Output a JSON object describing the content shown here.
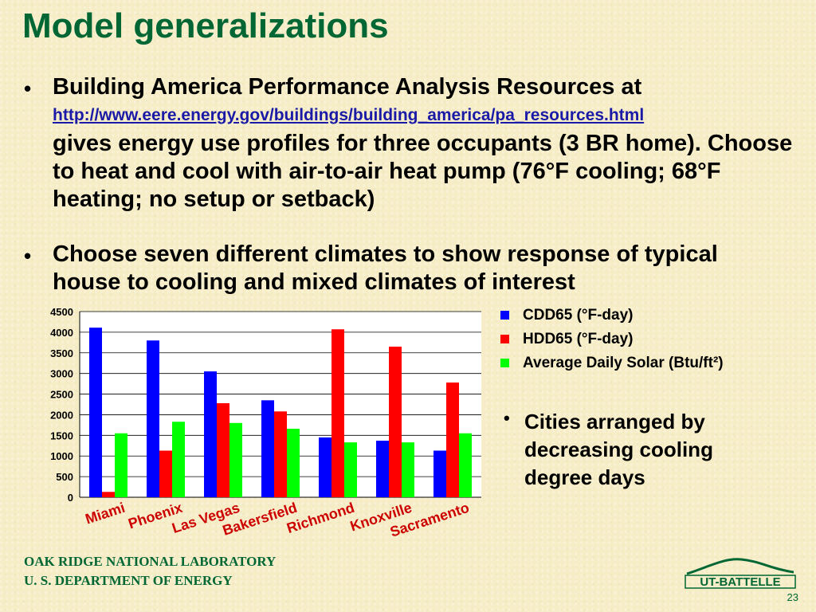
{
  "slide": {
    "title": "Model generalizations",
    "bullets": [
      {
        "lead": "Building America Performance Analysis Resources at",
        "link": "http://www.eere.energy.gov/buildings/building_america/pa_resources.html",
        "trail": "gives energy use profiles for three occupants (3 BR home). Choose to heat and cool with air-to-air heat pump (76°F cooling; 68°F heating; no setup or setback)"
      },
      {
        "text": "Choose seven different climates to show response of typical house to cooling and mixed climates of interest"
      }
    ],
    "side_note": "Cities arranged by decreasing cooling degree days",
    "footer": {
      "org_line1": "OAK RIDGE NATIONAL LABORATORY",
      "org_line2": "U. S. DEPARTMENT OF ENERGY",
      "logo_text": "UT-BATTELLE",
      "page_number": "23"
    }
  },
  "chart_data": {
    "type": "bar",
    "categories": [
      "Miami",
      "Phoenix",
      "Las Vegas",
      "Bakersfield",
      "Richmond",
      "Knoxville",
      "Sacramento"
    ],
    "series": [
      {
        "name": "CDD65 (°F-day)",
        "color": "#0000ff",
        "values": [
          4110,
          3800,
          3050,
          2350,
          1450,
          1370,
          1130
        ]
      },
      {
        "name": "HDD65 (°F-day)",
        "color": "#ff0000",
        "values": [
          130,
          1130,
          2280,
          2080,
          4070,
          3650,
          2780
        ]
      },
      {
        "name": "Average Daily Solar (Btu/ft²)",
        "color": "#00ff00",
        "values": [
          1550,
          1830,
          1800,
          1660,
          1330,
          1330,
          1550
        ]
      }
    ],
    "yticks": [
      "0",
      "500",
      "1000",
      "1500",
      "2000",
      "2500",
      "3000",
      "3500",
      "4000",
      "4500"
    ],
    "ylim": [
      0,
      4500
    ],
    "grid": true,
    "legend": "right"
  }
}
